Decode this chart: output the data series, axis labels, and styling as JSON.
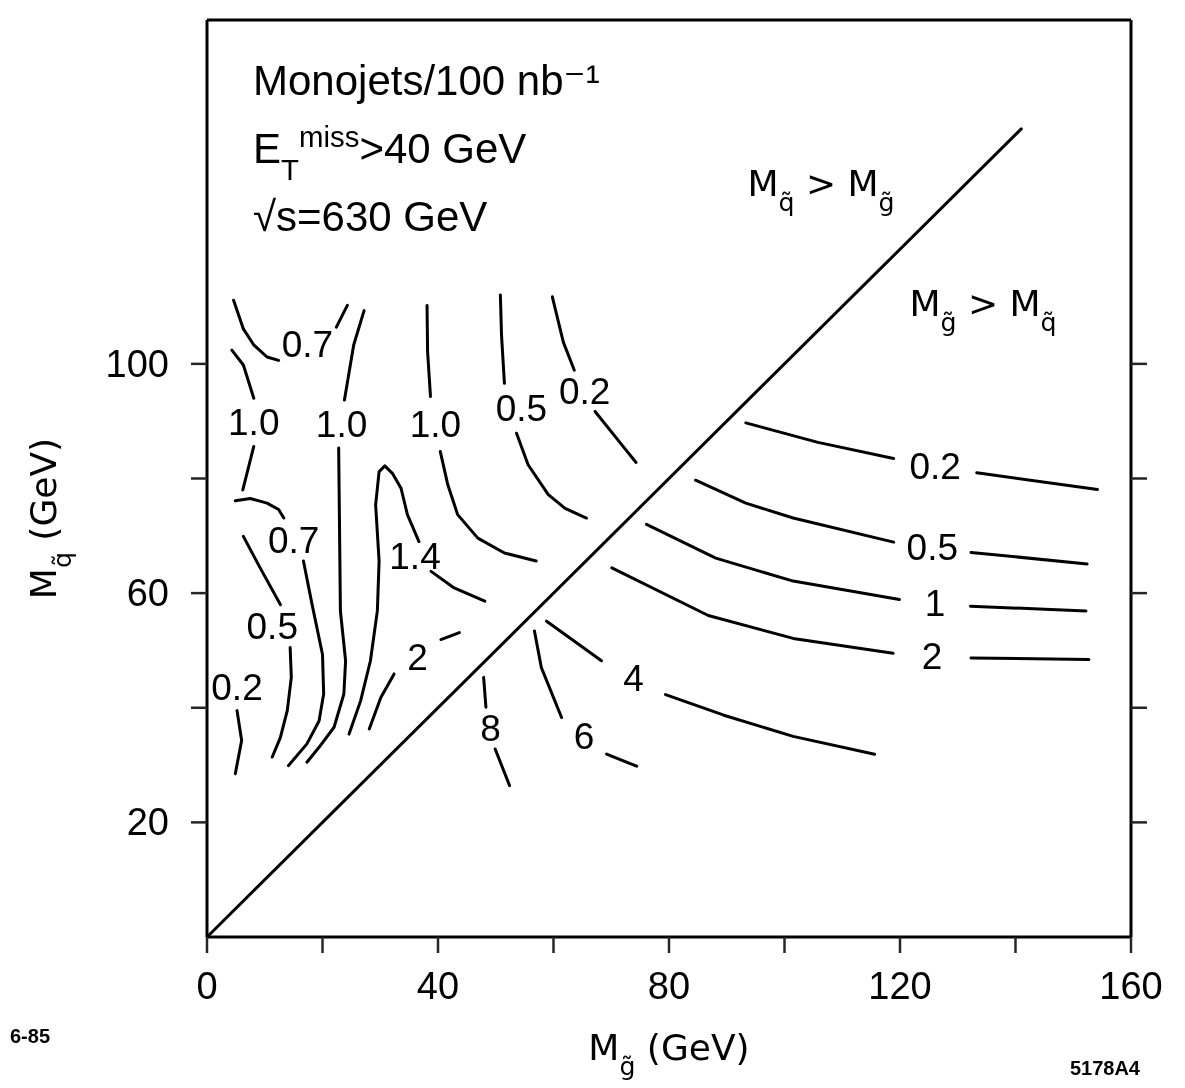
{
  "chart_data": {
    "type": "line",
    "xlabel": "M$_{g̃}$ (GeV)",
    "ylabel": "M$_{q̃}$ (GeV)",
    "xlim": [
      0,
      160
    ],
    "ylim": [
      0,
      160
    ],
    "xticks": [
      0,
      {
        "value": 20,
        "label": null
      },
      40,
      {
        "value": 60,
        "label": null
      },
      80,
      {
        "value": 100,
        "label": null
      },
      120,
      {
        "value": 140,
        "label": null
      },
      160
    ],
    "yticks": [
      20,
      {
        "value": 40,
        "label": null
      },
      60,
      {
        "value": 80,
        "label": null
      },
      100
    ],
    "line_style": "solid",
    "series": [
      {
        "name": "0.7",
        "color": "#000000",
        "x": [
          4.6,
          6.3,
          8.1,
          10.4,
          12.4,
          null,
          22.4,
          24.3
        ],
        "values": [
          111.1,
          106.1,
          103.3,
          101.2,
          100.6,
          null,
          106.4,
          110.2
        ]
      },
      {
        "name": "1.0",
        "color": "#000000",
        "x": [
          4.3,
          6.3,
          8.1,
          null,
          8.1,
          6.2
        ],
        "values": [
          102.4,
          99.8,
          94.0,
          null,
          85.6,
          78.0
        ]
      },
      {
        "name": "0.7",
        "color": "#000000",
        "x": [
          4.9,
          7.5,
          10.4,
          12.4,
          13.3,
          null,
          16.7,
          18.2,
          20.0,
          20.2,
          19.4,
          17.3,
          14.1
        ],
        "values": [
          76.1,
          76.5,
          75.7,
          74.6,
          73.1,
          null,
          65.6,
          58.0,
          49.3,
          42.4,
          37.7,
          33.7,
          29.9
        ]
      },
      {
        "name": "0.5",
        "color": "#000000",
        "x": [
          6.3,
          9.2,
          12.7,
          null,
          14.4,
          14.6,
          13.9,
          12.7,
          11.3
        ],
        "values": [
          69.9,
          64.4,
          58.0,
          null,
          50.5,
          45.3,
          39.5,
          34.8,
          31.4
        ]
      },
      {
        "name": "0.2",
        "color": "#000000",
        "x": [
          5.2,
          6.0,
          4.9
        ],
        "values": [
          39.5,
          34.3,
          28.5
        ]
      },
      {
        "name": "1.0",
        "color": "#000000",
        "x": [
          27.2,
          25.4,
          23.8,
          null,
          22.8,
          23.1,
          23.4,
          24.0,
          23.7,
          22.0,
          19.4,
          17.3
        ],
        "values": [
          109.3,
          103.3,
          93.7,
          null,
          85.3,
          56.9,
          54.0,
          48.2,
          42.4,
          36.6,
          33.1,
          30.5
        ]
      },
      {
        "name": "1.4",
        "color": "#000000",
        "x": [
          24.6,
          26.6,
          28.3,
          29.5,
          29.8,
          29.2,
          29.8,
          30.8,
          32.1,
          33.6,
          34.7,
          36.7,
          null,
          38.8,
          42.8,
          48.1
        ],
        "values": [
          35.4,
          41.2,
          48.2,
          56.9,
          65.6,
          75.4,
          81.2,
          82.2,
          80.9,
          78.3,
          73.7,
          69.0,
          null,
          63.8,
          60.9,
          58.6
        ]
      },
      {
        "name": "2",
        "color": "#000000",
        "x": [
          28.1,
          30.1,
          32.4,
          null,
          40.5,
          43.7
        ],
        "values": [
          36.3,
          41.8,
          45.9,
          null,
          51.9,
          53.1
        ]
      },
      {
        "name": "1.0",
        "color": "#000000",
        "x": [
          38.1,
          38.2,
          38.7,
          null,
          40.4,
          41.7,
          43.4,
          46.9,
          51.5,
          57.0
        ],
        "values": [
          110.2,
          102.1,
          94.3,
          null,
          84.7,
          78.9,
          73.7,
          69.6,
          67.0,
          65.6
        ]
      },
      {
        "name": "0.5",
        "color": "#000000",
        "x": [
          50.8,
          51.0,
          51.5,
          null,
          53.6,
          55.6,
          59.1,
          62.0,
          65.7
        ],
        "values": [
          112.0,
          105.0,
          96.6,
          null,
          87.9,
          82.4,
          77.2,
          74.8,
          73.1
        ]
      },
      {
        "name": "0.2",
        "color": "#000000",
        "x": [
          59.8,
          61.7,
          63.6,
          null,
          67.2,
          71.8,
          74.3
        ],
        "values": [
          111.7,
          103.8,
          98.9,
          null,
          91.7,
          85.9,
          82.8
        ]
      },
      {
        "color": "#000000",
        "x": [
          0,
          141
        ],
        "values": [
          0,
          141
        ]
      },
      {
        "name": "0.2",
        "color": "#000000",
        "x": [
          93.3,
          105.8,
          118.9,
          null,
          133.3,
          154.2
        ],
        "values": [
          89.7,
          86.3,
          83.5,
          null,
          81.0,
          78.1
        ]
      },
      {
        "name": "0.5",
        "color": "#000000",
        "x": [
          84.6,
          93.3,
          101.5,
          118.9,
          null,
          132.3,
          152.4
        ],
        "values": [
          79.7,
          75.7,
          73.1,
          68.9,
          null,
          67.1,
          65.1
        ]
      },
      {
        "name": "1",
        "color": "#000000",
        "x": [
          76.1,
          88.1,
          101.5,
          119.9,
          null,
          132.2,
          152.2
        ],
        "values": [
          72.0,
          66.1,
          62.1,
          58.9,
          null,
          57.7,
          56.9
        ]
      },
      {
        "name": "2",
        "color": "#000000",
        "x": [
          70.1,
          86.8,
          101.5,
          118.8,
          null,
          132.3,
          152.7
        ],
        "values": [
          64.4,
          56.1,
          52.1,
          49.5,
          null,
          48.7,
          48.4
        ]
      },
      {
        "name": "4",
        "color": "#000000",
        "x": [
          58.8,
          63.5,
          68.3,
          null,
          79.4,
          89.5,
          101.5,
          115.6
        ],
        "values": [
          55.1,
          51.7,
          48.2,
          null,
          42.3,
          38.7,
          35.0,
          31.9
        ]
      },
      {
        "name": "6",
        "color": "#000000",
        "x": [
          56.7,
          57.9,
          61.4,
          null,
          69.2,
          74.4
        ],
        "values": [
          53.4,
          47.0,
          38.3,
          null,
          31.9,
          29.8
        ]
      },
      {
        "name": "8",
        "color": "#000000",
        "x": [
          47.9,
          48.3,
          null,
          49.9,
          52.4
        ],
        "values": [
          45.3,
          40.1,
          null,
          32.8,
          26.4
        ]
      }
    ],
    "annotations": [
      "Monojets/100 nb⁻¹",
      "E$_{T}$$^{miss}$>40 GeV",
      "√s=630 GeV",
      "M$_{q̃}$ > M$_{g̃}$",
      "M$_{g̃}$ > M$_{q̃}$",
      "6-85",
      "5178A4"
    ]
  }
}
